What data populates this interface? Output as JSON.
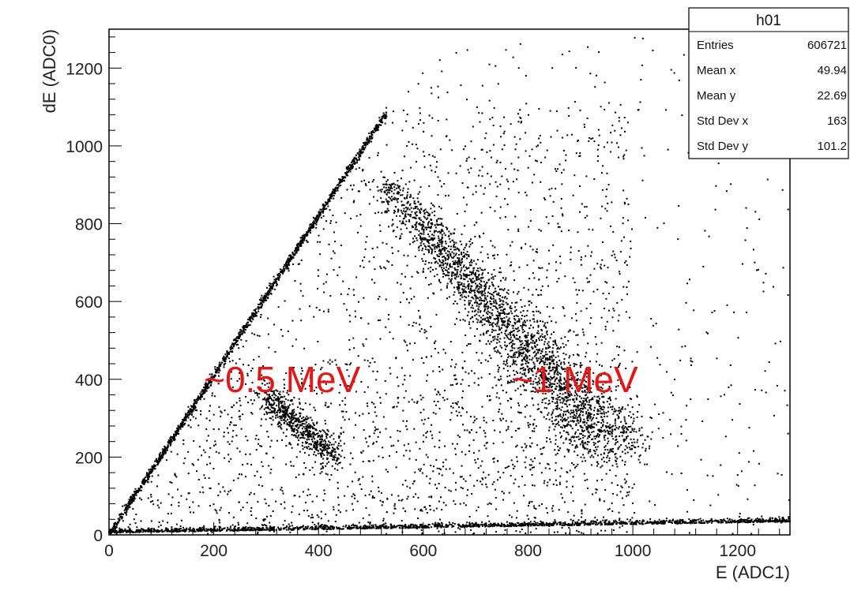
{
  "chart_data": {
    "type": "scatter",
    "xlabel": "E (ADC1)",
    "ylabel": "dE (ADC0)",
    "xlim": [
      0,
      1300
    ],
    "ylim": [
      0,
      1300
    ],
    "x_ticks": [
      0,
      200,
      400,
      600,
      800,
      1000,
      1200
    ],
    "y_ticks": [
      0,
      200,
      400,
      600,
      800,
      1000,
      1200
    ],
    "x_tick_labels": [
      "0",
      "200",
      "400",
      "600",
      "800",
      "1000",
      "1200"
    ],
    "y_tick_labels": [
      "0",
      "200",
      "400",
      "600",
      "800",
      "1000",
      "1200"
    ],
    "point_color": "#000000",
    "grid": false,
    "stats_box": {
      "title": "h01",
      "placement": "top-right",
      "rows": [
        {
          "key": "Entries",
          "value": "606721"
        },
        {
          "key": "Mean x",
          "value": "49.94"
        },
        {
          "key": "Mean y",
          "value": "22.69"
        },
        {
          "key": "Std Dev x",
          "value": "163"
        },
        {
          "key": "Std Dev y",
          "value": "101.2"
        }
      ]
    },
    "annotations": [
      {
        "text": "~0.5 MeV",
        "x": 480,
        "y": 400,
        "color": "#e01818"
      },
      {
        "text": "~1 MeV",
        "x": 1010,
        "y": 400,
        "color": "#e01818"
      }
    ],
    "features": [
      {
        "kind": "diagonal_edge",
        "from": [
          0,
          0
        ],
        "to": [
          560,
          1150
        ]
      },
      {
        "kind": "baseline_band",
        "from": [
          0,
          5
        ],
        "to": [
          1300,
          35
        ]
      },
      {
        "kind": "band",
        "from": [
          530,
          900
        ],
        "to": [
          970,
          220
        ]
      },
      {
        "kind": "band",
        "from": [
          300,
          360
        ],
        "to": [
          420,
          200
        ]
      }
    ]
  }
}
